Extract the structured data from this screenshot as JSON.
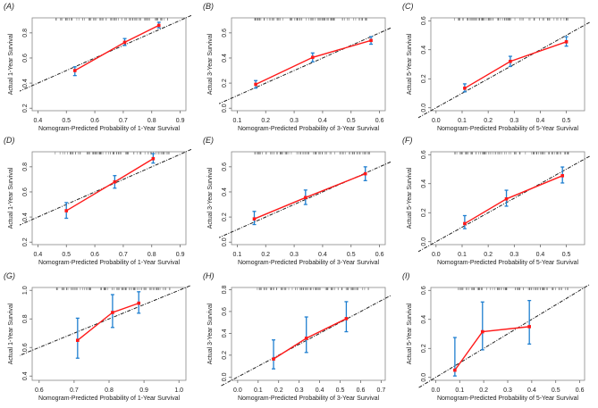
{
  "chart_data": [
    {
      "type": "line",
      "panel": "(A)",
      "xlabel": "Nomogram-Predicted Probability of 1-Year Survival",
      "ylabel": "Actual 1-Year Survival",
      "xlim": [
        0.38,
        0.92
      ],
      "ylim": [
        0.18,
        0.92
      ],
      "xticks": [
        0.4,
        0.5,
        0.6,
        0.7,
        0.8,
        0.9
      ],
      "yticks": [
        0.2,
        0.4,
        0.6,
        0.8
      ],
      "points": [
        {
          "x": 0.53,
          "y": 0.5,
          "lo": 0.46,
          "hi": 0.53
        },
        {
          "x": 0.705,
          "y": 0.725,
          "lo": 0.7,
          "hi": 0.755
        },
        {
          "x": 0.825,
          "y": 0.86,
          "lo": 0.84,
          "hi": 0.885
        }
      ]
    },
    {
      "type": "line",
      "panel": "(B)",
      "xlabel": "Nomogram-Predicted Probability of 3-Year Survival",
      "ylabel": "Actual 3-Year Survival",
      "xlim": [
        0.08,
        0.62
      ],
      "ylim": [
        -0.02,
        0.72
      ],
      "xticks": [
        0.1,
        0.2,
        0.3,
        0.4,
        0.5,
        0.6
      ],
      "yticks": [
        0.0,
        0.2,
        0.4,
        0.6
      ],
      "points": [
        {
          "x": 0.165,
          "y": 0.19,
          "lo": 0.16,
          "hi": 0.22
        },
        {
          "x": 0.365,
          "y": 0.405,
          "lo": 0.37,
          "hi": 0.44
        },
        {
          "x": 0.57,
          "y": 0.54,
          "lo": 0.51,
          "hi": 0.57
        }
      ]
    },
    {
      "type": "line",
      "panel": "(C)",
      "xlabel": "Nomogram-Predicted Probability of 5-Year Survival",
      "ylabel": "Actual 5-Year Survival",
      "xlim": [
        -0.02,
        0.57
      ],
      "ylim": [
        -0.02,
        0.62
      ],
      "xticks": [
        0.0,
        0.1,
        0.2,
        0.3,
        0.4,
        0.5
      ],
      "yticks": [
        0.0,
        0.2,
        0.4,
        0.6
      ],
      "points": [
        {
          "x": 0.11,
          "y": 0.135,
          "lo": 0.11,
          "hi": 0.165
        },
        {
          "x": 0.285,
          "y": 0.32,
          "lo": 0.285,
          "hi": 0.355
        },
        {
          "x": 0.5,
          "y": 0.455,
          "lo": 0.425,
          "hi": 0.49
        }
      ]
    },
    {
      "type": "line",
      "panel": "(D)",
      "xlabel": "Nomogram-Predicted Probability of 1-Year Survival",
      "ylabel": "Actual 1-Year Survival",
      "xlim": [
        0.38,
        0.92
      ],
      "ylim": [
        0.18,
        0.92
      ],
      "xticks": [
        0.4,
        0.5,
        0.6,
        0.7,
        0.8,
        0.9
      ],
      "yticks": [
        0.2,
        0.4,
        0.6,
        0.8
      ],
      "points": [
        {
          "x": 0.5,
          "y": 0.45,
          "lo": 0.39,
          "hi": 0.515
        },
        {
          "x": 0.67,
          "y": 0.68,
          "lo": 0.63,
          "hi": 0.73
        },
        {
          "x": 0.805,
          "y": 0.865,
          "lo": 0.83,
          "hi": 0.905
        }
      ]
    },
    {
      "type": "line",
      "panel": "(E)",
      "xlabel": "Nomogram-Predicted Probability of 3-Year Survival",
      "ylabel": "Actual 3-Year Survival",
      "xlim": [
        0.08,
        0.62
      ],
      "ylim": [
        -0.02,
        0.72
      ],
      "xticks": [
        0.1,
        0.2,
        0.3,
        0.4,
        0.5,
        0.6
      ],
      "yticks": [
        0.0,
        0.2,
        0.4,
        0.6
      ],
      "points": [
        {
          "x": 0.16,
          "y": 0.185,
          "lo": 0.14,
          "hi": 0.245
        },
        {
          "x": 0.34,
          "y": 0.355,
          "lo": 0.3,
          "hi": 0.415
        },
        {
          "x": 0.55,
          "y": 0.545,
          "lo": 0.49,
          "hi": 0.6
        }
      ]
    },
    {
      "type": "line",
      "panel": "(F)",
      "xlabel": "Nomogram-Predicted Probability of 5-Year Survival",
      "ylabel": "Actual 5-Year Survival",
      "xlim": [
        -0.02,
        0.57
      ],
      "ylim": [
        -0.02,
        0.62
      ],
      "xticks": [
        0.0,
        0.1,
        0.2,
        0.3,
        0.4,
        0.5
      ],
      "yticks": [
        0.0,
        0.2,
        0.4,
        0.6
      ],
      "points": [
        {
          "x": 0.11,
          "y": 0.125,
          "lo": 0.09,
          "hi": 0.18
        },
        {
          "x": 0.27,
          "y": 0.295,
          "lo": 0.245,
          "hi": 0.355
        },
        {
          "x": 0.485,
          "y": 0.455,
          "lo": 0.405,
          "hi": 0.515
        }
      ]
    },
    {
      "type": "line",
      "panel": "(G)",
      "xlabel": "Nomogram-Predicted Probability of 1-Year Survival",
      "ylabel": "Actual 1-Year Survival",
      "xlim": [
        0.58,
        1.02
      ],
      "ylim": [
        0.37,
        1.02
      ],
      "xticks": [
        0.6,
        0.7,
        0.8,
        0.9,
        1.0
      ],
      "yticks": [
        0.4,
        0.6,
        0.8,
        1.0
      ],
      "points": [
        {
          "x": 0.71,
          "y": 0.65,
          "lo": 0.525,
          "hi": 0.805
        },
        {
          "x": 0.81,
          "y": 0.845,
          "lo": 0.74,
          "hi": 0.97
        },
        {
          "x": 0.885,
          "y": 0.91,
          "lo": 0.84,
          "hi": 0.99
        }
      ]
    },
    {
      "type": "line",
      "panel": "(H)",
      "xlabel": "Nomogram-Predicted Probability of 3-Year Survival",
      "ylabel": "Actual 3-Year Survival",
      "xlim": [
        -0.03,
        0.72
      ],
      "ylim": [
        -0.03,
        0.82
      ],
      "xticks": [
        0.0,
        0.1,
        0.2,
        0.3,
        0.4,
        0.5,
        0.6,
        0.7
      ],
      "yticks": [
        0.0,
        0.2,
        0.4,
        0.6,
        0.8
      ],
      "points": [
        {
          "x": 0.175,
          "y": 0.165,
          "lo": 0.075,
          "hi": 0.34
        },
        {
          "x": 0.335,
          "y": 0.355,
          "lo": 0.225,
          "hi": 0.55
        },
        {
          "x": 0.53,
          "y": 0.535,
          "lo": 0.415,
          "hi": 0.69
        }
      ]
    },
    {
      "type": "line",
      "panel": "(I)",
      "xlabel": "Nomogram-Predicted Probability of 5-Year Survival",
      "ylabel": "Actual 5-Year Survival",
      "xlim": [
        -0.02,
        0.62
      ],
      "ylim": [
        -0.02,
        0.62
      ],
      "xticks": [
        0.0,
        0.1,
        0.2,
        0.3,
        0.4,
        0.5,
        0.6
      ],
      "yticks": [
        0.0,
        0.2,
        0.4,
        0.6
      ],
      "points": [
        {
          "x": 0.08,
          "y": 0.05,
          "lo": 0.01,
          "hi": 0.275
        },
        {
          "x": 0.195,
          "y": 0.315,
          "lo": 0.19,
          "hi": 0.52
        },
        {
          "x": 0.39,
          "y": 0.35,
          "lo": 0.23,
          "hi": 0.53
        }
      ]
    }
  ],
  "colors": {
    "calibration": "#ff1a1a",
    "errorbar": "#1f7fd0",
    "ideal": "#222222"
  }
}
